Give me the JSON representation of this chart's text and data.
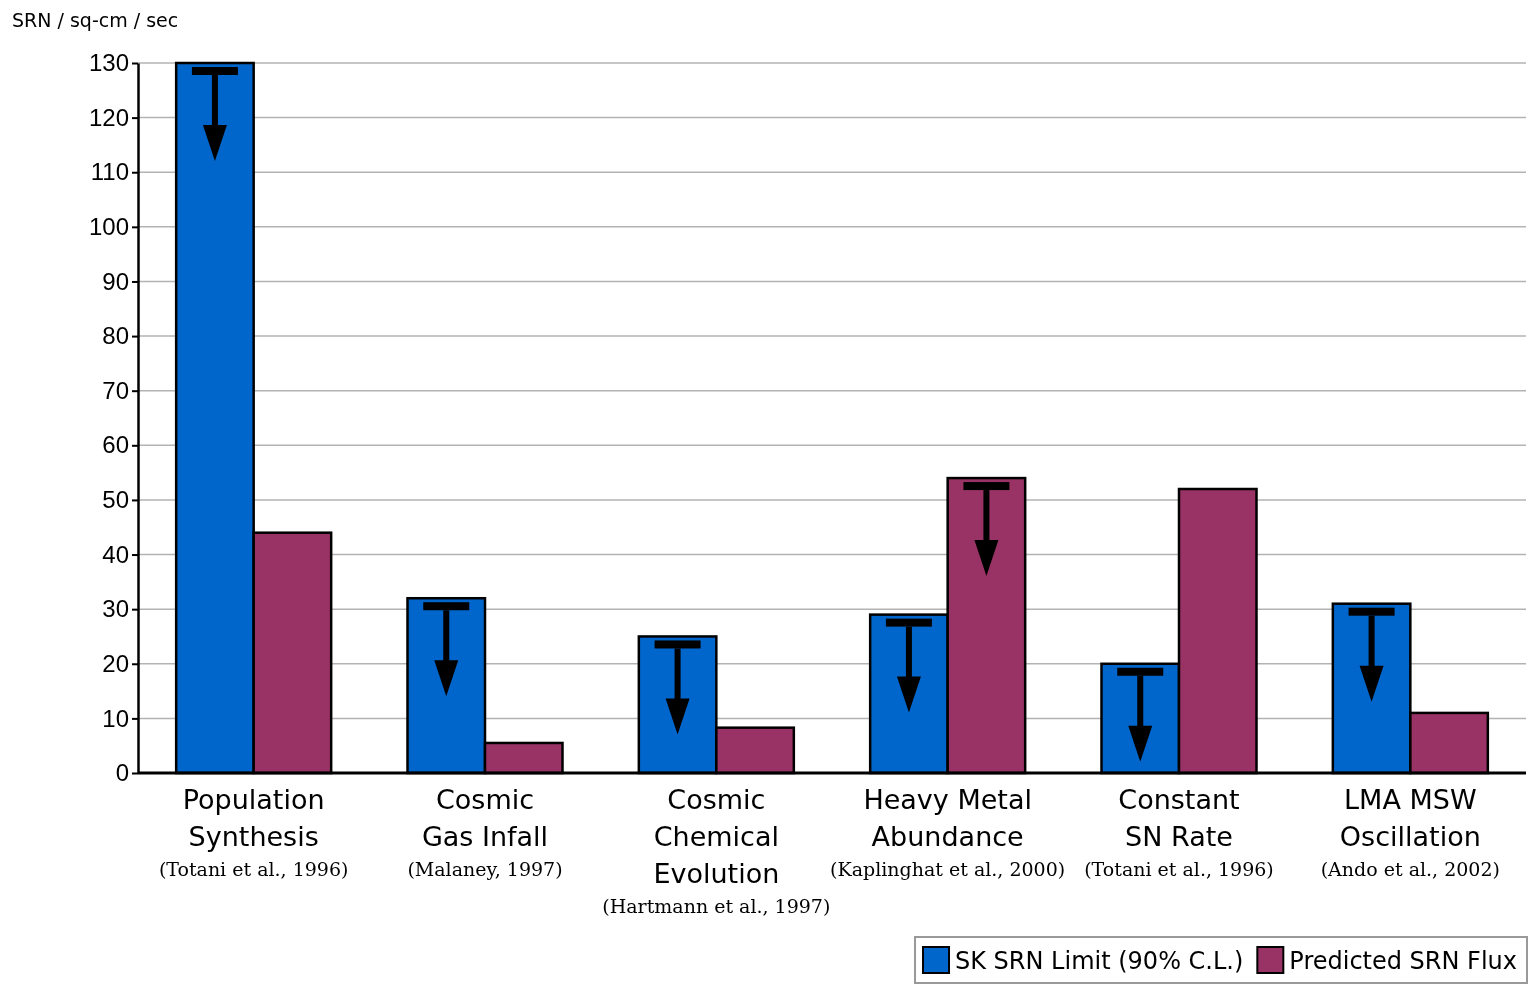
{
  "chart_data": {
    "type": "bar",
    "ylabel": "SRN / sq-cm / sec",
    "categories": [
      "Population\nSynthesis\n(Totani et al., 1996)",
      "Cosmic\nGas Infall\n(Malaney, 1997)",
      "Cosmic\nChemical\nEvolution\n(Hartmann et al., 1997)",
      "Heavy Metal\nAbundance\n(Kaplinghat et al., 2000)",
      "Constant\nSN Rate\n(Totani et al., 1996)",
      "LMA MSW\nOscillation\n(Ando et al., 2002)"
    ],
    "series": [
      {
        "name": "SK SRN Limit (90% C.L.)",
        "color": "#0066cc",
        "values": [
          130,
          32,
          25,
          29,
          20,
          31
        ]
      },
      {
        "name": "Predicted SRN Flux",
        "color": "#993366",
        "values": [
          44,
          5.5,
          8.3,
          54,
          52,
          11
        ]
      }
    ],
    "ylim": [
      0,
      130
    ],
    "yticks": [
      0,
      10,
      20,
      30,
      40,
      50,
      60,
      70,
      80,
      90,
      100,
      110,
      120,
      130
    ],
    "grid": "y",
    "legend": "bottom right"
  }
}
